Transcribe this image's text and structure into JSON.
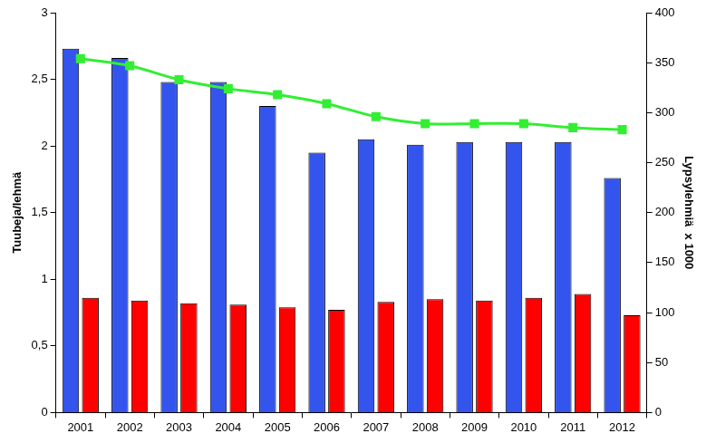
{
  "chart_data": {
    "type": "bar",
    "categories": [
      "2001",
      "2002",
      "2003",
      "2004",
      "2005",
      "2006",
      "2007",
      "2008",
      "2009",
      "2010",
      "2011",
      "2012"
    ],
    "y_label": "Tuubeja/lehmä",
    "y2_label": "Lypsylehmiä  x 1000",
    "ylim": [
      0,
      3
    ],
    "yticks": [
      0,
      {
        "value": 0.5,
        "label": "0,5"
      },
      1,
      {
        "value": 1.5,
        "label": "1,5"
      },
      2,
      {
        "value": 2.5,
        "label": "2,5"
      },
      3
    ],
    "y2lim": [
      0,
      400
    ],
    "y2ticks": [
      0,
      50,
      100,
      150,
      200,
      250,
      300,
      350,
      400
    ],
    "grid": false,
    "series": [
      {
        "type": "bar",
        "color": "#3355ee",
        "axis": "y",
        "values": [
          2.73,
          2.66,
          2.48,
          2.48,
          2.3,
          1.95,
          2.05,
          2.01,
          2.03,
          2.03,
          2.03,
          1.76
        ]
      },
      {
        "type": "bar",
        "color": "#ff0000",
        "axis": "y",
        "values": [
          0.86,
          0.84,
          0.82,
          0.81,
          0.79,
          0.77,
          0.83,
          0.85,
          0.84,
          0.86,
          0.89,
          0.73
        ]
      },
      {
        "type": "line",
        "color": "#33ee33",
        "axis": "y2",
        "marker": "square",
        "values": [
          354,
          347,
          333,
          324,
          318,
          309,
          296,
          289,
          289,
          289,
          285,
          283
        ]
      }
    ]
  }
}
